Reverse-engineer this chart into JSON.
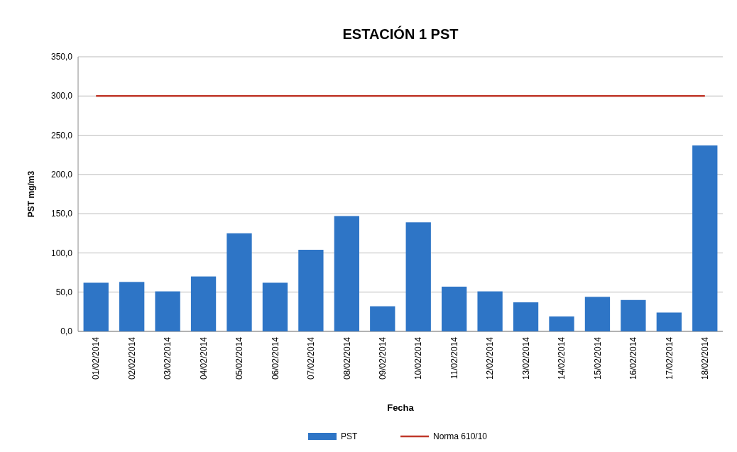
{
  "chart_data": {
    "type": "bar",
    "title": "ESTACIÓN 1 PST",
    "xlabel": "Fecha",
    "ylabel": "PST mg/m3",
    "categories": [
      "01/02/2014",
      "02/02/2014",
      "03/02/2014",
      "04/02/2014",
      "05/02/2014",
      "06/02/2014",
      "07/02/2014",
      "08/02/2014",
      "09/02/2014",
      "10/02/2014",
      "11/02/2014",
      "12/02/2014",
      "13/02/2014",
      "14/02/2014",
      "15/02/2014",
      "16/02/2014",
      "17/02/2014",
      "18/02/2014"
    ],
    "series": [
      {
        "name": "PST",
        "color": "#2e75c6",
        "values": [
          62,
          63,
          51,
          70,
          125,
          62,
          104,
          147,
          32,
          139,
          57,
          51,
          37,
          19,
          44,
          40,
          24,
          237
        ]
      },
      {
        "name": "Norma 610/10",
        "type": "line",
        "color": "#c0392b",
        "values": [
          300,
          300,
          300,
          300,
          300,
          300,
          300,
          300,
          300,
          300,
          300,
          300,
          300,
          300,
          300,
          300,
          300,
          300
        ]
      }
    ],
    "ylim": [
      0,
      350
    ],
    "yticks": [
      {
        "value": 0,
        "label": "0,0"
      },
      {
        "value": 50,
        "label": "50,0"
      },
      {
        "value": 100,
        "label": "100,0"
      },
      {
        "value": 150,
        "label": "150,0"
      },
      {
        "value": 200,
        "label": "200,0"
      },
      {
        "value": 250,
        "label": "250,0"
      },
      {
        "value": 300,
        "label": "300,0"
      },
      {
        "value": 350,
        "label": "350,0"
      }
    ],
    "grid": "y",
    "legend": "bottom"
  }
}
